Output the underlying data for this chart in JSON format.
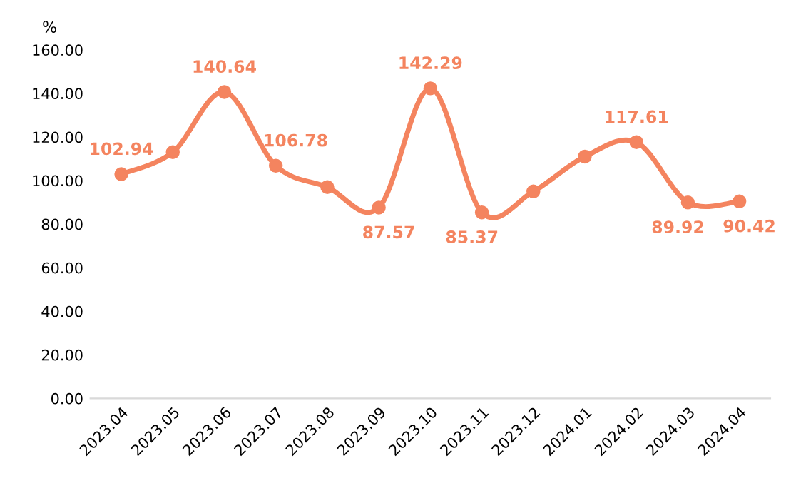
{
  "chart_data": {
    "type": "line",
    "ylabel": "%",
    "categories": [
      "2023.04",
      "2023.05",
      "2023.06",
      "2023.07",
      "2023.08",
      "2023.09",
      "2023.10",
      "2023.11",
      "2023.12",
      "2024.01",
      "2024.02",
      "2024.03",
      "2024.04"
    ],
    "series": [
      {
        "color": "#f4845f",
        "values": [
          102.94,
          113,
          140.64,
          106.78,
          97,
          87.57,
          142.29,
          85.37,
          95,
          111,
          117.61,
          89.92,
          90.42
        ],
        "value_labels": [
          "102.94",
          null,
          "140.64",
          "106.78",
          null,
          "87.57",
          "142.29",
          "85.37",
          null,
          null,
          "117.61",
          "89.92",
          "90.42"
        ]
      }
    ],
    "ylim": [
      0,
      160
    ],
    "yticks": [
      {
        "value": 0,
        "label": "0.00"
      },
      {
        "value": 20,
        "label": "20.00"
      },
      {
        "value": 40,
        "label": "40.00"
      },
      {
        "value": 60,
        "label": "60.00"
      },
      {
        "value": 80,
        "label": "80.00"
      },
      {
        "value": 100,
        "label": "100.00"
      },
      {
        "value": 120,
        "label": "120.00"
      },
      {
        "value": 140,
        "label": "140.00"
      },
      {
        "value": 160,
        "label": "160.00"
      }
    ],
    "marker": "circle",
    "line_style": "solid",
    "grid": false,
    "legend": false
  }
}
